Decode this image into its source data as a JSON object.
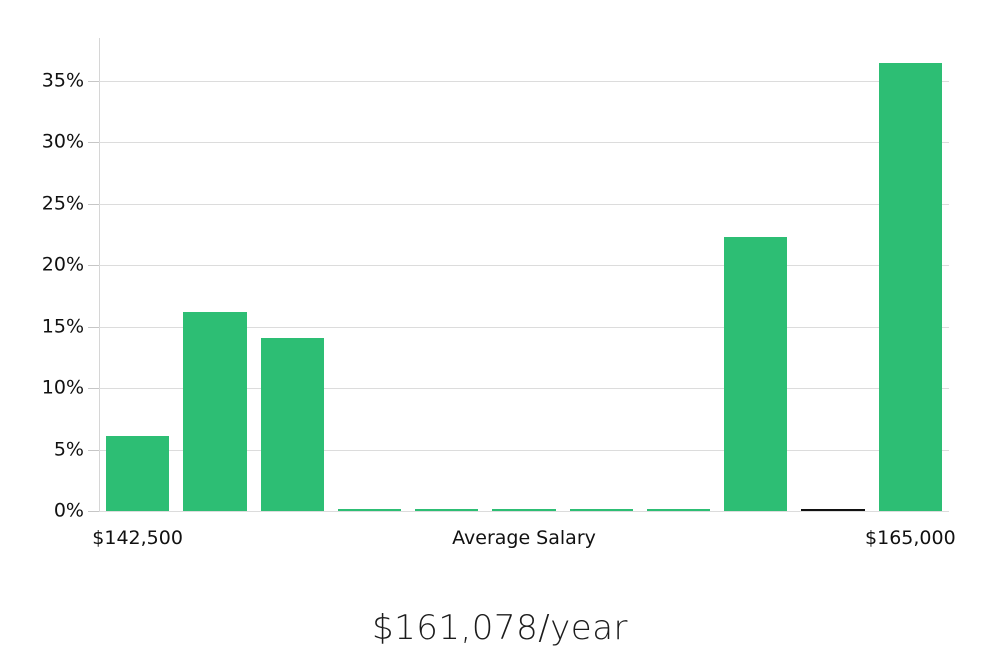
{
  "chart_data": {
    "type": "bar",
    "title": "$161,078/year",
    "xlabel": "",
    "ylabel": "",
    "ylim": [
      0,
      38.5
    ],
    "yticks": [
      0,
      5,
      10,
      15,
      20,
      25,
      30,
      35
    ],
    "ytick_suffix": "%",
    "grid": "horizontal",
    "legend": "none",
    "bin_count": 11,
    "values": [
      6.1,
      16.2,
      14.1,
      0.15,
      0.15,
      0.15,
      0.15,
      0.15,
      22.3,
      0.2,
      36.5
    ],
    "bar_default_color": "#2dbe74",
    "highlight_bar": {
      "index": 9,
      "color": "#111111",
      "meaning": "average-salary-marker"
    },
    "xticks": [
      {
        "bin_index": 0,
        "label": "$142,500"
      },
      {
        "bin_index": 5,
        "label": "Average Salary"
      },
      {
        "bin_index": 10,
        "label": "$165,000"
      }
    ]
  },
  "colors": {
    "background": "#ffffff",
    "gridline": "#dcdcdc",
    "axis_spine": "#d6d6d6",
    "tick": "#c6c6c6",
    "text": "#111111",
    "title_text": "#1c1c1c"
  }
}
